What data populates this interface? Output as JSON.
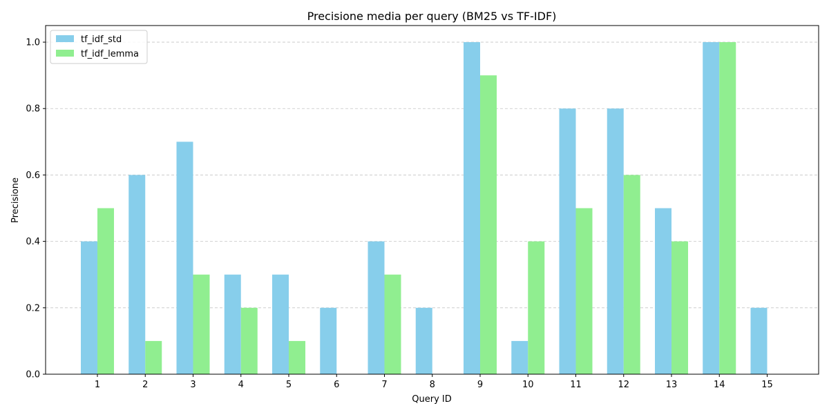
{
  "chart_data": {
    "type": "bar",
    "title": "Precisione media per query (BM25 vs TF-IDF)",
    "xlabel": "Query ID",
    "ylabel": "Precisione",
    "categories": [
      "1",
      "2",
      "3",
      "4",
      "5",
      "6",
      "7",
      "8",
      "9",
      "10",
      "11",
      "12",
      "13",
      "14",
      "15"
    ],
    "series": [
      {
        "name": "tf_idf_std",
        "color": "#87ceeb",
        "values": [
          0.4,
          0.6,
          0.7,
          0.3,
          0.3,
          0.2,
          0.4,
          0.2,
          1.0,
          0.1,
          0.8,
          0.8,
          0.5,
          1.0,
          0.2
        ]
      },
      {
        "name": "tf_idf_lemma",
        "color": "#90ee90",
        "values": [
          0.5,
          0.1,
          0.3,
          0.2,
          0.1,
          0.0,
          0.3,
          0.0,
          0.9,
          0.4,
          0.5,
          0.6,
          0.4,
          1.0,
          0.0
        ]
      }
    ],
    "ylim": [
      0,
      1.05
    ],
    "yticks": [
      "0.0",
      "0.2",
      "0.4",
      "0.6",
      "0.8",
      "1.0"
    ],
    "grid": "y, dashed",
    "legend_position": "top-left"
  }
}
